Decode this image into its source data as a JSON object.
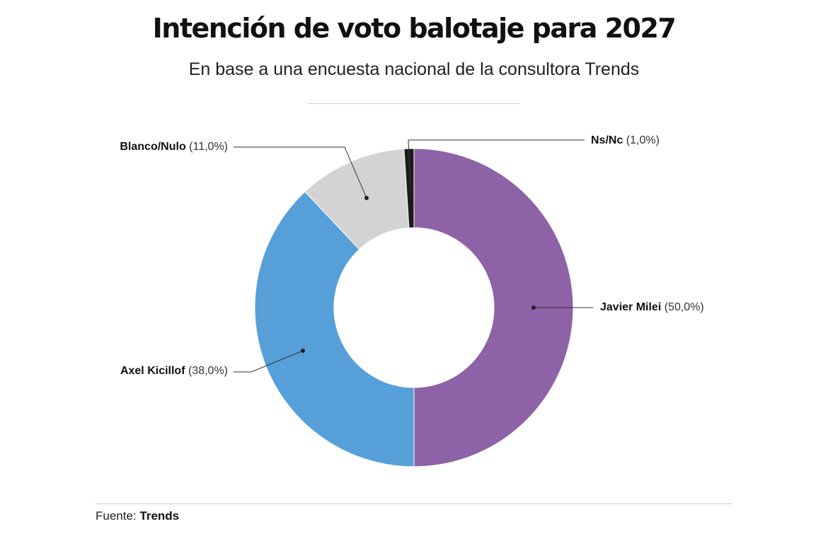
{
  "title": "Intención de voto balotaje para 2027",
  "subtitle": "En base a una encuesta nacional de la consultora Trends",
  "source": {
    "prefix": "Fuente:",
    "name": "Trends"
  },
  "chart_data": {
    "type": "pie",
    "donut": true,
    "slices": [
      {
        "label": "Javier Milei",
        "value": 50.0,
        "display": "(50,0%)",
        "color": "#8e62a6"
      },
      {
        "label": "Axel Kicillof",
        "value": 38.0,
        "display": "(38,0%)",
        "color": "#569fd9"
      },
      {
        "label": "Blanco/Nulo",
        "value": 11.0,
        "display": "(11,0%)",
        "color": "#d3d3d3"
      },
      {
        "label": "Ns/Nc",
        "value": 1.0,
        "display": "(1,0%)",
        "color": "#1b1b1b"
      }
    ]
  }
}
